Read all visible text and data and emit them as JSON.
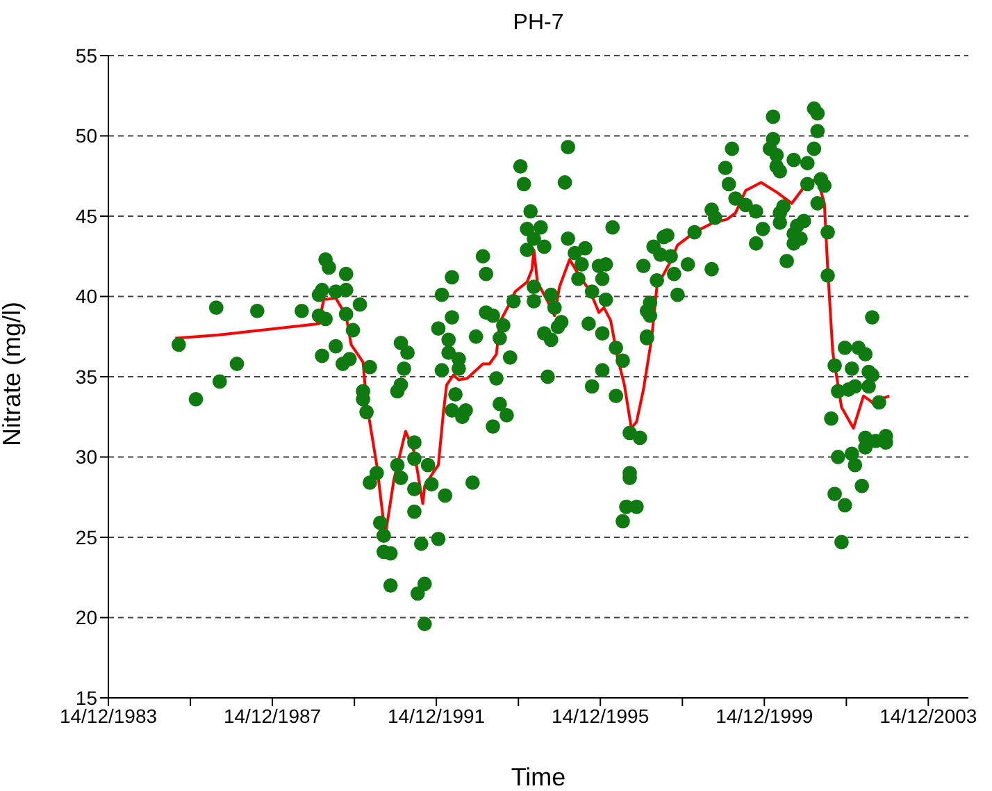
{
  "chart_data": {
    "type": "scatter",
    "title": "PH-7",
    "xlabel": "Time",
    "ylabel": "Nitrate (mg/l)",
    "xlim": [
      "1983-12-14",
      "2004-12-05"
    ],
    "xticks": [
      {
        "value": "1983-12-14",
        "label": "14/12/1983"
      },
      {
        "value": "1985-12-14",
        "label": null
      },
      {
        "value": "1987-12-14",
        "label": "14/12/1987"
      },
      {
        "value": "1989-12-14",
        "label": null
      },
      {
        "value": "1991-12-14",
        "label": "14/12/1991"
      },
      {
        "value": "1993-12-14",
        "label": null
      },
      {
        "value": "1995-12-14",
        "label": "14/12/1995"
      },
      {
        "value": "1997-12-14",
        "label": null
      },
      {
        "value": "1999-12-14",
        "label": "14/12/1999"
      },
      {
        "value": "2001-12-14",
        "label": null
      },
      {
        "value": "2003-12-14",
        "label": "14/12/2003"
      }
    ],
    "ylim": [
      15,
      55
    ],
    "yticks": [
      15,
      20,
      25,
      30,
      35,
      40,
      45,
      50,
      55
    ],
    "grid": "y",
    "series": [
      {
        "color": "#0f7a0f",
        "marker": "circle",
        "x": [
          "1985-09",
          "1986-02",
          "1986-08",
          "1986-09",
          "1987-02",
          "1987-08",
          "1988-09",
          "1989-02",
          "1989-02",
          "1989-03",
          "1989-03",
          "1989-04",
          "1989-04",
          "1989-05",
          "1989-07",
          "1989-07",
          "1989-09",
          "1989-10",
          "1989-10",
          "1989-10",
          "1989-11",
          "1989-12",
          "1990-02",
          "1990-03",
          "1990-03",
          "1990-04",
          "1990-05",
          "1990-05",
          "1990-07",
          "1990-08",
          "1990-09",
          "1990-09",
          "1990-11",
          "1990-11",
          "1991-01",
          "1991-01",
          "1991-02",
          "1991-02",
          "1991-02",
          "1991-03",
          "1991-04",
          "1991-06",
          "1991-06",
          "1991-06",
          "1991-06",
          "1991-07",
          "1991-08",
          "1991-09",
          "1991-09",
          "1991-10",
          "1991-11",
          "1992-01",
          "1992-01",
          "1992-02",
          "1992-02",
          "1992-03",
          "1992-04",
          "1992-04",
          "1992-05",
          "1992-05",
          "1992-05",
          "1992-06",
          "1992-07",
          "1992-07",
          "1992-08",
          "1992-09",
          "1992-11",
          "1992-12",
          "1993-02",
          "1993-03",
          "1993-03",
          "1993-05",
          "1993-05",
          "1993-06",
          "1993-07",
          "1993-07",
          "1993-08",
          "1993-09",
          "1993-10",
          "1993-11",
          "1994-01",
          "1994-02",
          "1994-03",
          "1994-03",
          "1994-04",
          "1994-05",
          "1994-05",
          "1994-05",
          "1994-07",
          "1994-08",
          "1994-08",
          "1994-09",
          "1994-10",
          "1994-10",
          "1994-11",
          "1994-12",
          "1995-01",
          "1995-02",
          "1995-03",
          "1995-03",
          "1995-05",
          "1995-06",
          "1995-07",
          "1995-08",
          "1995-09",
          "1995-10",
          "1995-10",
          "1995-12",
          "1996-01",
          "1996-01",
          "1996-01",
          "1996-02",
          "1996-02",
          "1996-04",
          "1996-05",
          "1996-05",
          "1996-07",
          "1996-07",
          "1996-08",
          "1996-09",
          "1996-09",
          "1996-09",
          "1996-11",
          "1996-12",
          "1997-01",
          "1997-02",
          "1997-02",
          "1997-02",
          "1997-03",
          "1997-03",
          "1997-04",
          "1997-05",
          "1997-06",
          "1997-07",
          "1997-08",
          "1997-09",
          "1997-10",
          "1997-11",
          "1998-02",
          "1998-04",
          "1998-09",
          "1998-09",
          "1998-10",
          "1999-01",
          "1999-02",
          "1999-03",
          "1999-04",
          "1999-07",
          "1999-10",
          "1999-10",
          "1999-12",
          "2000-02",
          "2000-03",
          "2000-03",
          "2000-04",
          "2000-04",
          "2000-05",
          "2000-05",
          "2000-05",
          "2000-06",
          "2000-07",
          "2000-09",
          "2000-09",
          "2000-09",
          "2000-10",
          "2000-11",
          "2000-12",
          "2001-01",
          "2001-01",
          "2001-03",
          "2001-03",
          "2001-04",
          "2001-04",
          "2001-04",
          "2001-05",
          "2001-06",
          "2001-07",
          "2001-07",
          "2001-08",
          "2001-09",
          "2001-09",
          "2001-10",
          "2001-10",
          "2001-11",
          "2001-12",
          "2001-12",
          "2002-01",
          "2002-02",
          "2002-02",
          "2002-03",
          "2002-03",
          "2002-04",
          "2002-05",
          "2002-06",
          "2002-06",
          "2002-06",
          "2002-07",
          "2002-07",
          "2002-08",
          "2002-08",
          "2002-09",
          "2002-10",
          "2002-12",
          "2002-12"
        ],
        "values": [
          37.0,
          33.6,
          39.3,
          34.7,
          35.8,
          39.1,
          39.1,
          40.1,
          38.8,
          36.3,
          40.4,
          42.3,
          38.6,
          41.8,
          36.9,
          40.3,
          35.8,
          40.4,
          41.4,
          38.9,
          36.1,
          37.9,
          39.5,
          33.6,
          34.1,
          32.8,
          35.6,
          28.4,
          29.0,
          25.9,
          25.1,
          24.1,
          22.0,
          24.0,
          29.5,
          34.1,
          37.1,
          28.7,
          34.5,
          35.5,
          36.5,
          30.9,
          29.9,
          28.0,
          26.6,
          21.5,
          24.6,
          22.1,
          19.6,
          29.5,
          28.3,
          24.9,
          38.0,
          35.4,
          40.1,
          27.6,
          36.5,
          37.3,
          41.2,
          38.7,
          32.9,
          33.9,
          36.1,
          35.5,
          32.5,
          32.9,
          28.4,
          37.5,
          42.5,
          41.4,
          39.0,
          31.9,
          38.8,
          34.9,
          37.4,
          33.3,
          38.2,
          32.6,
          36.2,
          39.7,
          48.1,
          47.0,
          44.2,
          42.9,
          45.3,
          43.6,
          40.6,
          39.7,
          44.3,
          43.1,
          37.7,
          35.0,
          40.1,
          37.3,
          39.3,
          38.1,
          38.4,
          47.1,
          49.3,
          43.6,
          42.7,
          41.1,
          42.0,
          43.0,
          38.3,
          40.3,
          34.4,
          41.9,
          37.7,
          41.1,
          35.4,
          42.0,
          39.8,
          44.3,
          33.8,
          36.8,
          36.0,
          26.0,
          26.9,
          28.7,
          31.5,
          29.0,
          26.9,
          31.2,
          41.9,
          39.1,
          37.4,
          37.5,
          39.6,
          38.8,
          43.1,
          41.0,
          42.6,
          43.7,
          43.8,
          42.5,
          41.4,
          40.1,
          42.0,
          44.0,
          41.7,
          45.4,
          44.9,
          48.0,
          47.0,
          49.2,
          46.1,
          45.7,
          45.3,
          43.3,
          44.2,
          49.2,
          49.8,
          51.2,
          48.8,
          48.1,
          44.6,
          47.8,
          45.2,
          45.6,
          42.2,
          48.5,
          43.9,
          43.3,
          44.4,
          43.6,
          44.7,
          48.3,
          47.0,
          49.2,
          51.7,
          51.4,
          45.8,
          50.3,
          47.3,
          46.9,
          44.0,
          41.3,
          32.4,
          35.7,
          27.7,
          30.0,
          34.1,
          24.7,
          27.0,
          36.8,
          34.2,
          30.2,
          35.5,
          34.4,
          29.5,
          36.8,
          28.2,
          30.6,
          31.2,
          36.4,
          34.4,
          35.3,
          35.1,
          38.7,
          31.0,
          33.4,
          30.9,
          31.3
        ]
      },
      {
        "type": "line",
        "color": "#ff0000",
        "x": [
          "1985-08-01",
          "1986-08-15",
          "1989-02-01",
          "1989-03-15",
          "1989-07-01",
          "1989-10-01",
          "1989-11-15",
          "1990-03-01",
          "1990-04-01",
          "1990-07-01",
          "1990-09-15",
          "1990-12-01",
          "1991-03-15",
          "1991-06-01",
          "1991-08-15",
          "1991-09-01",
          "1991-12-01",
          "1992-01-01",
          "1992-02-15",
          "1992-03-15",
          "1992-05-15",
          "1992-07-01",
          "1992-09-15",
          "1993-02-01",
          "1993-04-01",
          "1993-06-01",
          "1993-07-01",
          "1993-09-15",
          "1993-11-15",
          "1994-03-01",
          "1994-04-15",
          "1994-05-01",
          "1994-06-01",
          "1994-09-01",
          "1994-11-01",
          "1994-12-15",
          "1995-03-15",
          "1995-06-01",
          "1995-09-15",
          "1995-12-01",
          "1996-01-15",
          "1996-03-15",
          "1996-05-15",
          "1996-07-15",
          "1996-09-15",
          "1996-11-01",
          "1997-01-01",
          "1997-03-15",
          "1997-05-01",
          "1997-07-01",
          "1997-09-01",
          "1997-11-01",
          "1998-04-01",
          "1998-09-15",
          "1999-01-15",
          "1999-04-01",
          "1999-07-01",
          "1999-11-15",
          "2000-04-01",
          "2000-08-15",
          "2001-01-01",
          "2001-04-01",
          "2001-06-01",
          "2001-07-01",
          "2001-08-15",
          "2001-11-01",
          "2002-02-15",
          "2002-05-15",
          "2002-07-15",
          "2002-09-15",
          "2002-10-15",
          "2003-01-01"
        ],
        "values": [
          37.4,
          37.6,
          38.3,
          39.8,
          39.9,
          38.8,
          37.0,
          35.9,
          33.4,
          29.5,
          25.1,
          28.6,
          31.6,
          30.3,
          27.1,
          28.2,
          29.2,
          29.5,
          32.8,
          34.5,
          35.1,
          34.8,
          34.9,
          35.8,
          35.8,
          36.4,
          38.4,
          39.4,
          40.3,
          40.9,
          41.7,
          42.9,
          40.9,
          39.7,
          38.8,
          40.6,
          42.3,
          41.4,
          40.3,
          39.0,
          39.3,
          38.5,
          36.2,
          34.5,
          31.8,
          32.2,
          34.2,
          37.4,
          40.6,
          41.4,
          42.2,
          43.2,
          44.0,
          44.6,
          44.8,
          45.2,
          46.6,
          47.1,
          46.5,
          45.8,
          47.1,
          47.3,
          45.8,
          41.7,
          36.5,
          33.1,
          31.8,
          33.8,
          33.5,
          33.1,
          33.6,
          33.8
        ]
      }
    ]
  }
}
